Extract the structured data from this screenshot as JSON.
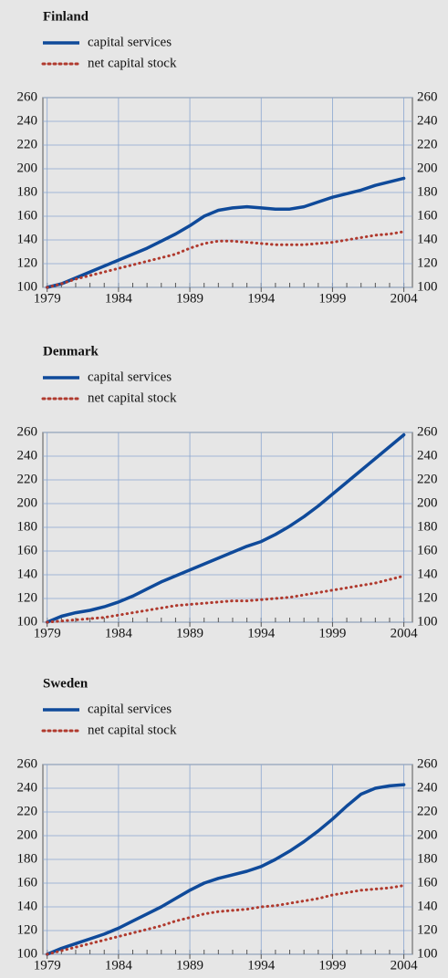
{
  "chart_data": [
    {
      "type": "line",
      "title": "Finland",
      "x": [
        1979,
        1980,
        1981,
        1982,
        1983,
        1984,
        1985,
        1986,
        1987,
        1988,
        1989,
        1990,
        1991,
        1992,
        1993,
        1994,
        1995,
        1996,
        1997,
        1998,
        1999,
        2000,
        2001,
        2002,
        2003,
        2004
      ],
      "series": [
        {
          "name": "capital services",
          "color": "#0f4a9a",
          "style": "solid",
          "values": [
            100,
            103,
            108,
            113,
            118,
            123,
            128,
            133,
            139,
            145,
            152,
            160,
            165,
            167,
            168,
            167,
            166,
            166,
            168,
            172,
            176,
            179,
            182,
            186,
            189,
            192
          ]
        },
        {
          "name": "net capital stock",
          "color": "#b03a2e",
          "style": "dotted",
          "values": [
            100,
            103,
            107,
            110,
            113,
            116,
            119,
            122,
            125,
            128,
            133,
            137,
            139,
            139,
            138,
            137,
            136,
            136,
            136,
            137,
            138,
            140,
            142,
            144,
            145,
            147
          ]
        }
      ],
      "xlim": [
        1978.7,
        2004.6
      ],
      "ylim": [
        100,
        260
      ],
      "xticks": [
        1979,
        1984,
        1989,
        1994,
        1999,
        2004
      ],
      "yticks": [
        100,
        120,
        140,
        160,
        180,
        200,
        220,
        240,
        260
      ],
      "grid": true
    },
    {
      "type": "line",
      "title": "Denmark",
      "x": [
        1979,
        1980,
        1981,
        1982,
        1983,
        1984,
        1985,
        1986,
        1987,
        1988,
        1989,
        1990,
        1991,
        1992,
        1993,
        1994,
        1995,
        1996,
        1997,
        1998,
        1999,
        2000,
        2001,
        2002,
        2003,
        2004
      ],
      "series": [
        {
          "name": "capital services",
          "color": "#0f4a9a",
          "style": "solid",
          "values": [
            100,
            105,
            108,
            110,
            113,
            117,
            122,
            128,
            134,
            139,
            144,
            149,
            154,
            159,
            164,
            168,
            174,
            181,
            189,
            198,
            208,
            218,
            228,
            238,
            248,
            258
          ]
        },
        {
          "name": "net capital stock",
          "color": "#b03a2e",
          "style": "dotted",
          "values": [
            100,
            101,
            102,
            103,
            104,
            106,
            108,
            110,
            112,
            114,
            115,
            116,
            117,
            118,
            118,
            119,
            120,
            121,
            123,
            125,
            127,
            129,
            131,
            133,
            136,
            139
          ]
        }
      ],
      "xlim": [
        1978.7,
        2004.6
      ],
      "ylim": [
        100,
        260
      ],
      "xticks": [
        1979,
        1984,
        1989,
        1994,
        1999,
        2004
      ],
      "yticks": [
        100,
        120,
        140,
        160,
        180,
        200,
        220,
        240,
        260
      ],
      "grid": true
    },
    {
      "type": "line",
      "title": "Sweden",
      "x": [
        1979,
        1980,
        1981,
        1982,
        1983,
        1984,
        1985,
        1986,
        1987,
        1988,
        1989,
        1990,
        1991,
        1992,
        1993,
        1994,
        1995,
        1996,
        1997,
        1998,
        1999,
        2000,
        2001,
        2002,
        2003,
        2004
      ],
      "series": [
        {
          "name": "capital services",
          "color": "#0f4a9a",
          "style": "solid",
          "values": [
            100,
            105,
            109,
            113,
            117,
            122,
            128,
            134,
            140,
            147,
            154,
            160,
            164,
            167,
            170,
            174,
            180,
            187,
            195,
            204,
            214,
            225,
            235,
            240,
            242,
            243
          ]
        },
        {
          "name": "net capital stock",
          "color": "#b03a2e",
          "style": "dotted",
          "values": [
            100,
            103,
            106,
            109,
            112,
            115,
            118,
            121,
            124,
            128,
            131,
            134,
            136,
            137,
            138,
            140,
            141,
            143,
            145,
            147,
            150,
            152,
            154,
            155,
            156,
            158
          ]
        }
      ],
      "xlim": [
        1978.7,
        2004.6
      ],
      "ylim": [
        100,
        260
      ],
      "xticks": [
        1979,
        1984,
        1989,
        1994,
        1999,
        2004
      ],
      "yticks": [
        100,
        120,
        140,
        160,
        180,
        200,
        220,
        240,
        260
      ],
      "grid": true
    }
  ]
}
